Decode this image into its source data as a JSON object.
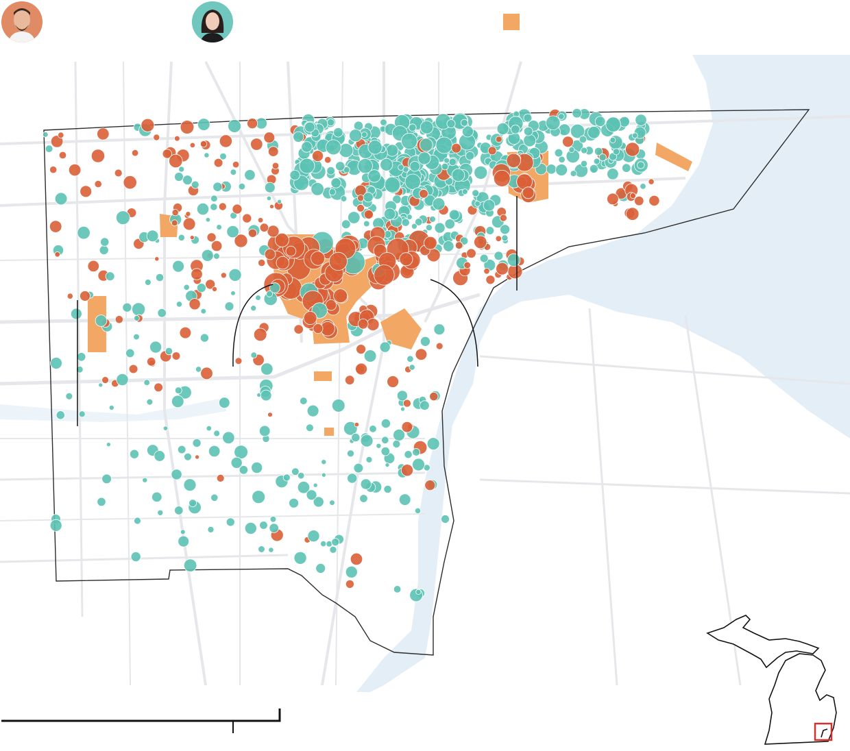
{
  "legend": {
    "candidate_a": {
      "color": "#d95f36",
      "avatar_bg": "#e08a66"
    },
    "candidate_b": {
      "color": "#5cc2b4",
      "avatar_bg": "#6fc7bd"
    },
    "area_swatch": {
      "color": "#f2a764"
    }
  },
  "colors": {
    "water": "#e4eef7",
    "roads": "#e6e7ea",
    "county_border": "#2b2b2b",
    "candidate_a": "#d95f36",
    "candidate_b": "#5cc2b4",
    "area_fill": "#f2a764",
    "inset_box": "#d0312d"
  },
  "icons": {
    "avatar_a": "man-portrait-icon",
    "avatar_b": "woman-portrait-icon",
    "swatch": "square-swatch-icon"
  }
}
